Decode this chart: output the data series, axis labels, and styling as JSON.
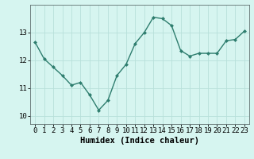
{
  "x": [
    0,
    1,
    2,
    3,
    4,
    5,
    6,
    7,
    8,
    9,
    10,
    11,
    12,
    13,
    14,
    15,
    16,
    17,
    18,
    19,
    20,
    21,
    22,
    23
  ],
  "y": [
    12.65,
    12.05,
    11.75,
    11.45,
    11.1,
    11.2,
    10.75,
    10.2,
    10.55,
    11.45,
    11.85,
    12.6,
    13.0,
    13.55,
    13.5,
    13.25,
    12.35,
    12.15,
    12.25,
    12.25,
    12.25,
    12.7,
    12.75,
    13.05
  ],
  "line_color": "#2e7d6e",
  "marker": "D",
  "marker_size": 2.0,
  "line_width": 1.0,
  "bg_color": "#d6f5f0",
  "grid_color": "#b8e0da",
  "xlabel": "Humidex (Indice chaleur)",
  "xlabel_fontsize": 7.5,
  "tick_fontsize": 6.5,
  "ylim": [
    9.7,
    14.0
  ],
  "xlim": [
    -0.5,
    23.5
  ],
  "yticks": [
    10,
    11,
    12,
    13
  ],
  "xticks": [
    0,
    1,
    2,
    3,
    4,
    5,
    6,
    7,
    8,
    9,
    10,
    11,
    12,
    13,
    14,
    15,
    16,
    17,
    18,
    19,
    20,
    21,
    22,
    23
  ]
}
